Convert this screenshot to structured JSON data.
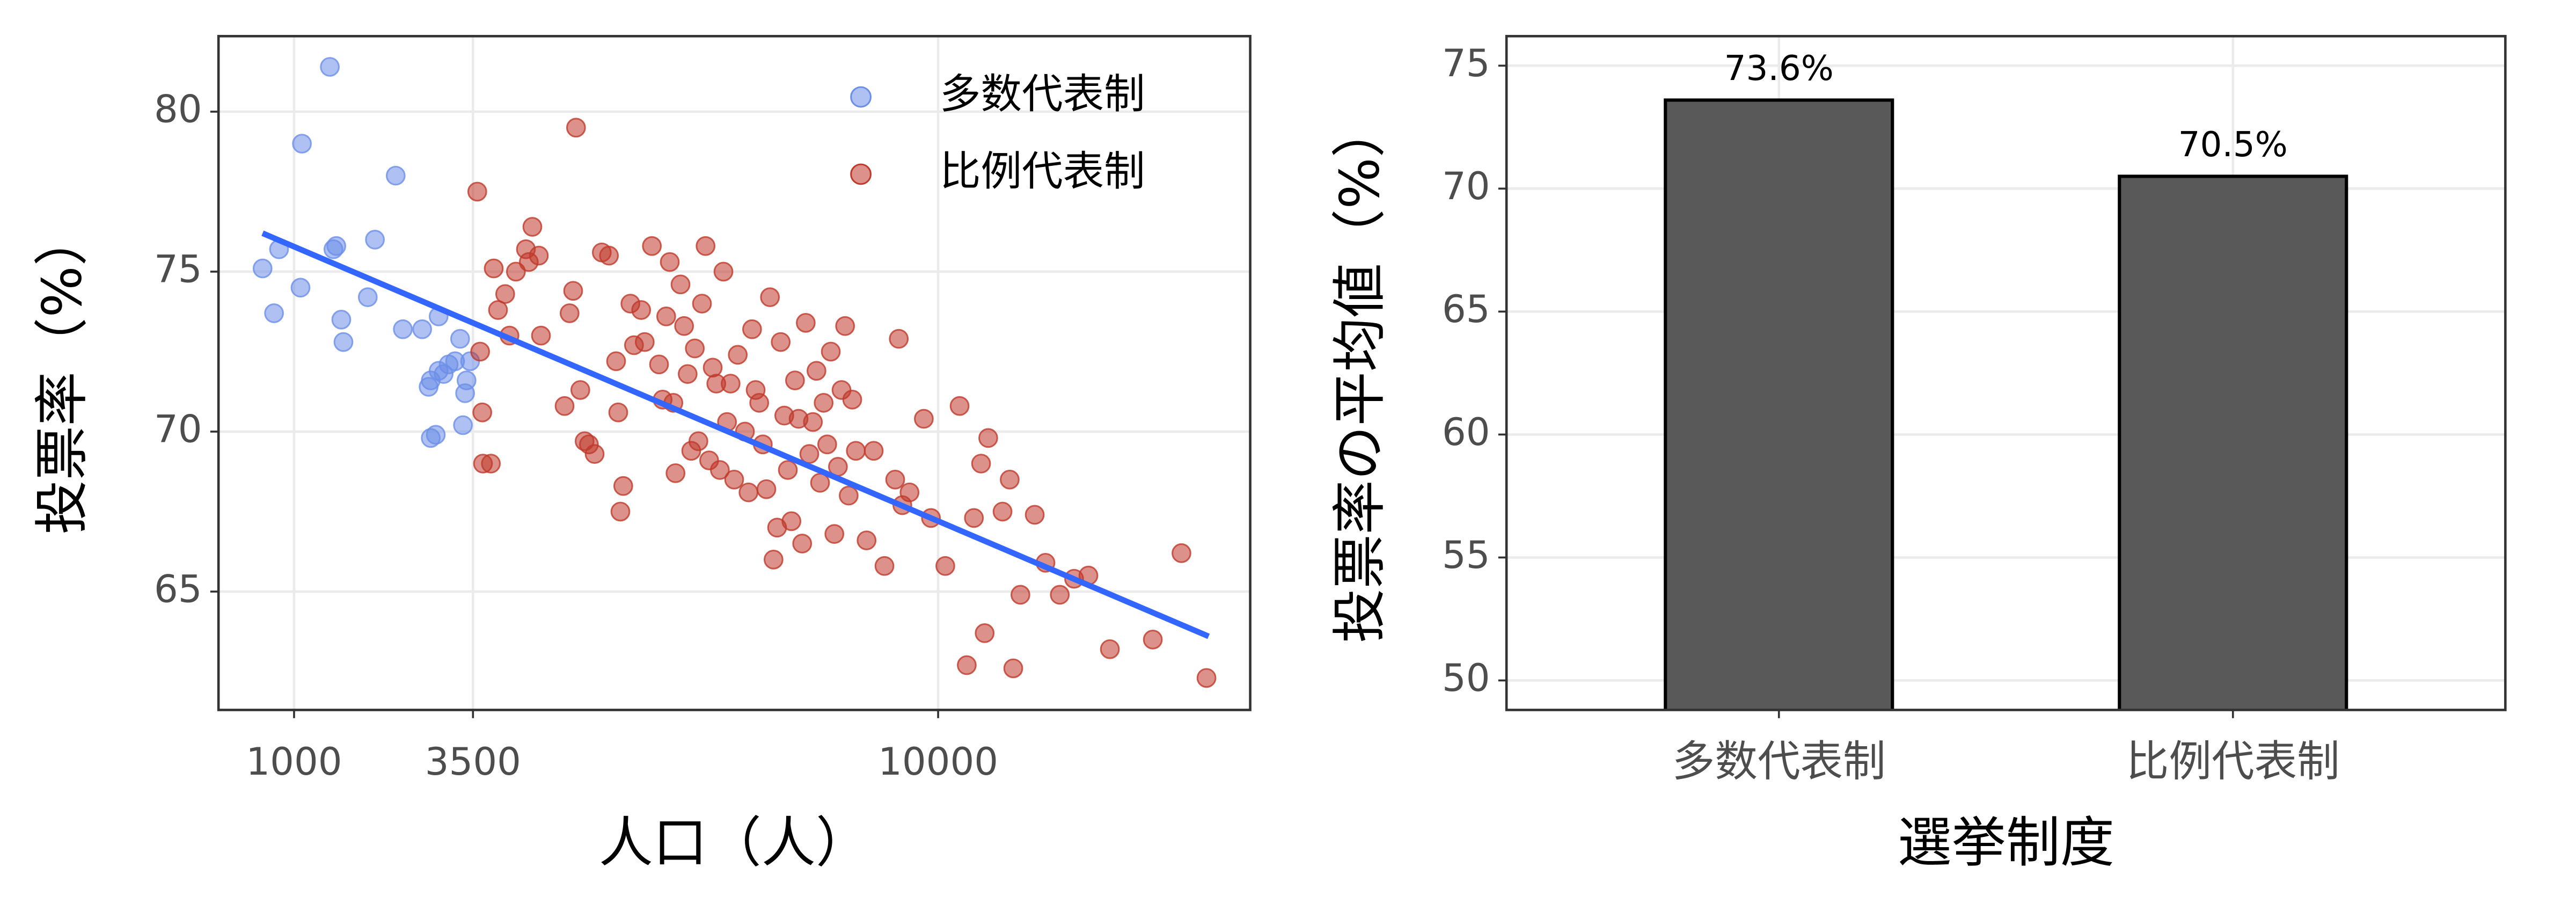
{
  "chart_data": [
    {
      "type": "scatter",
      "x_label": "人口（人）",
      "y_label": "投票率（%）",
      "xlim": [
        -56,
        14361
      ],
      "xticks": [
        1000,
        3500,
        10000
      ],
      "ylim": [
        61.3,
        82.36
      ],
      "yticks": [
        65,
        70,
        75,
        80
      ],
      "grid": true,
      "legend": "top-right",
      "series": [
        {
          "name": "多数代表制",
          "color": "#6b8ee8",
          "x": [
            560,
            720,
            790,
            1090,
            1110,
            1500,
            1550,
            1590,
            1660,
            1690,
            2030,
            2130,
            2420,
            2520,
            2790,
            2910,
            2880,
            2980,
            2910,
            3020,
            3020,
            3090,
            3160,
            3250,
            3320,
            3360,
            3390,
            3410,
            3460
          ],
          "values": [
            75.1,
            73.7,
            75.7,
            74.5,
            79.0,
            81.4,
            75.7,
            75.8,
            73.5,
            72.8,
            74.2,
            76.0,
            78.0,
            73.2,
            73.2,
            71.6,
            71.4,
            69.9,
            69.8,
            73.6,
            71.9,
            71.8,
            72.1,
            72.2,
            72.9,
            70.2,
            71.2,
            71.6,
            72.2
          ]
        },
        {
          "name": "比例代表制",
          "color": "#c0392b",
          "x": [
            3560,
            3600,
            3630,
            3640,
            3750,
            3790,
            3850,
            3950,
            4010,
            4100,
            4240,
            4280,
            4330,
            4420,
            4450,
            4780,
            4850,
            4900,
            4940,
            5000,
            5060,
            5120,
            5200,
            5300,
            5400,
            5500,
            5530,
            5560,
            5600,
            5700,
            5750,
            5850,
            5900,
            6000,
            6100,
            6150,
            6200,
            6250,
            6300,
            6330,
            6400,
            6450,
            6500,
            6550,
            6600,
            6650,
            6700,
            6750,
            6800,
            6850,
            6900,
            6950,
            7000,
            7050,
            7100,
            7150,
            7200,
            7300,
            7350,
            7400,
            7450,
            7500,
            7550,
            7600,
            7650,
            7700,
            7750,
            7800,
            7850,
            7900,
            7950,
            8000,
            8050,
            8100,
            8150,
            8200,
            8250,
            8300,
            8350,
            8400,
            8450,
            8500,
            8550,
            8600,
            8650,
            8700,
            8750,
            8800,
            8850,
            9000,
            9100,
            9250,
            9400,
            9450,
            9500,
            9600,
            9800,
            9900,
            10100,
            10300,
            10400,
            10500,
            10600,
            10650,
            10700,
            10900,
            11000,
            11050,
            11150,
            11350,
            11500,
            11700,
            11900,
            12100,
            12400,
            13000,
            13400,
            13750
          ],
          "values": [
            77.5,
            72.5,
            70.6,
            69.0,
            69.0,
            75.1,
            73.8,
            74.3,
            73.0,
            75.0,
            75.7,
            75.3,
            76.4,
            75.5,
            73.0,
            70.8,
            73.7,
            74.4,
            79.5,
            71.3,
            69.7,
            69.6,
            69.3,
            75.6,
            75.5,
            72.2,
            70.6,
            67.5,
            68.3,
            74.0,
            72.7,
            73.8,
            72.8,
            75.8,
            72.1,
            71.0,
            73.6,
            75.3,
            70.9,
            68.7,
            74.6,
            73.3,
            71.8,
            69.4,
            72.6,
            69.7,
            74.0,
            75.8,
            69.1,
            72.0,
            71.5,
            68.8,
            75.0,
            70.3,
            71.5,
            68.5,
            72.4,
            70.0,
            68.1,
            73.2,
            71.3,
            70.9,
            69.6,
            68.2,
            74.2,
            66.0,
            67.0,
            72.8,
            70.5,
            68.8,
            67.2,
            71.6,
            70.4,
            66.5,
            73.4,
            69.3,
            70.3,
            71.9,
            68.4,
            70.9,
            69.6,
            72.5,
            66.8,
            68.9,
            71.3,
            73.3,
            68.0,
            71.0,
            69.4,
            66.6,
            69.4,
            65.8,
            68.5,
            72.9,
            67.7,
            68.1,
            70.4,
            67.3,
            65.8,
            70.8,
            62.7,
            67.3,
            69.0,
            63.7,
            69.8,
            67.5,
            68.5,
            62.6,
            64.9,
            67.4,
            65.9,
            64.9,
            65.4,
            65.5,
            63.2,
            63.5,
            66.2,
            62.3
          ]
        }
      ],
      "trend_line": {
        "x": [
          560,
          13780
        ],
        "values": [
          76.2,
          63.6
        ],
        "color": "#3366ff"
      }
    },
    {
      "type": "bar",
      "x_label": "選挙制度",
      "y_label": "投票率の平均値（%）",
      "categories": [
        "多数代表制",
        "比例代表制"
      ],
      "values": [
        73.6,
        70.5
      ],
      "value_labels": [
        "73.6%",
        "70.5%"
      ],
      "color": "#595959",
      "ylim": [
        48.8,
        76.2
      ],
      "yticks": [
        50,
        55,
        60,
        65,
        70,
        75
      ],
      "grid": true
    }
  ]
}
